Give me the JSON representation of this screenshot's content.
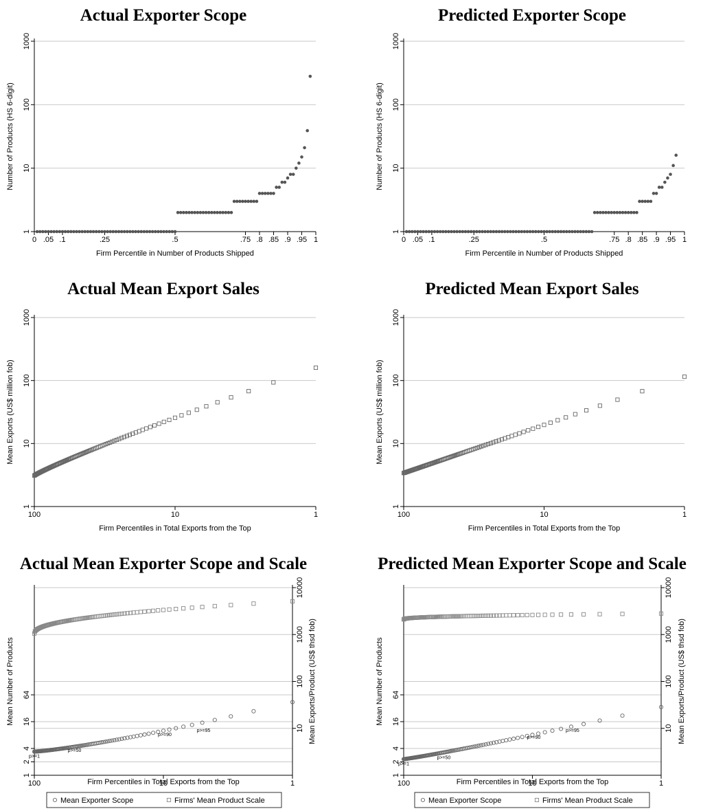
{
  "chart_data": [
    {
      "panel": "a1",
      "type": "scatter",
      "kind": "scope",
      "title": "Actual Exporter Scope",
      "xlabel": "Firm Percentile in Number of Products Shipped",
      "ylabel": "Number of Products (HS 6-digit)",
      "xlim": [
        0,
        1
      ],
      "ylim": [
        1,
        1000
      ],
      "yscale": "log",
      "xticks": [
        {
          "v": 0,
          "label": "0"
        },
        {
          "v": 0.05,
          "label": ".05"
        },
        {
          "v": 0.1,
          "label": ".1"
        },
        {
          "v": 0.25,
          "label": ".25"
        },
        {
          "v": 0.5,
          "label": ".5"
        },
        {
          "v": 0.75,
          "label": ".75"
        },
        {
          "v": 0.8,
          "label": ".8"
        },
        {
          "v": 0.85,
          "label": ".85"
        },
        {
          "v": 0.9,
          "label": ".9"
        },
        {
          "v": 0.95,
          "label": ".95"
        },
        {
          "v": 1,
          "label": "1"
        }
      ],
      "yticks": [
        {
          "v": 1,
          "label": "1"
        },
        {
          "v": 10,
          "label": "10"
        },
        {
          "v": 100,
          "label": "100"
        },
        {
          "v": 1000,
          "label": "1000"
        }
      ],
      "grid": true,
      "steps": [
        {
          "from": 0.01,
          "to": 0.5,
          "y": 1
        },
        {
          "from": 0.51,
          "to": 0.7,
          "y": 2
        },
        {
          "from": 0.71,
          "to": 0.79,
          "y": 3
        },
        {
          "from": 0.8,
          "to": 0.85,
          "y": 4
        },
        {
          "from": 0.86,
          "to": 0.87,
          "y": 5
        },
        {
          "from": 0.88,
          "to": 0.89,
          "y": 6
        }
      ],
      "tail": [
        {
          "x": 0.9,
          "y": 7
        },
        {
          "x": 0.91,
          "y": 8
        },
        {
          "x": 0.92,
          "y": 8
        },
        {
          "x": 0.93,
          "y": 10
        },
        {
          "x": 0.94,
          "y": 12
        },
        {
          "x": 0.95,
          "y": 15
        },
        {
          "x": 0.96,
          "y": 21
        },
        {
          "x": 0.97,
          "y": 39
        },
        {
          "x": 0.98,
          "y": 280
        }
      ]
    },
    {
      "panel": "p1",
      "type": "scatter",
      "kind": "scope",
      "title": "Predicted Exporter Scope",
      "xlabel": "Firm Percentile in Number of Products Shipped",
      "ylabel": "Number of Products (HS 6-digit)",
      "xlim": [
        0,
        1
      ],
      "ylim": [
        1,
        1000
      ],
      "yscale": "log",
      "xticks": [
        {
          "v": 0,
          "label": "0"
        },
        {
          "v": 0.05,
          "label": ".05"
        },
        {
          "v": 0.1,
          "label": ".1"
        },
        {
          "v": 0.25,
          "label": ".25"
        },
        {
          "v": 0.5,
          "label": ".5"
        },
        {
          "v": 0.75,
          "label": ".75"
        },
        {
          "v": 0.8,
          "label": ".8"
        },
        {
          "v": 0.85,
          "label": ".85"
        },
        {
          "v": 0.9,
          "label": ".9"
        },
        {
          "v": 0.95,
          "label": ".95"
        },
        {
          "v": 1,
          "label": "1"
        }
      ],
      "yticks": [
        {
          "v": 1,
          "label": "1"
        },
        {
          "v": 10,
          "label": "10"
        },
        {
          "v": 100,
          "label": "100"
        },
        {
          "v": 1000,
          "label": "1000"
        }
      ],
      "grid": true,
      "steps": [
        {
          "from": 0.01,
          "to": 0.67,
          "y": 1
        },
        {
          "from": 0.68,
          "to": 0.83,
          "y": 2
        },
        {
          "from": 0.84,
          "to": 0.88,
          "y": 3
        },
        {
          "from": 0.89,
          "to": 0.9,
          "y": 4
        },
        {
          "from": 0.91,
          "to": 0.92,
          "y": 5
        }
      ],
      "tail": [
        {
          "x": 0.93,
          "y": 6
        },
        {
          "x": 0.94,
          "y": 7
        },
        {
          "x": 0.95,
          "y": 8
        },
        {
          "x": 0.96,
          "y": 11
        },
        {
          "x": 0.97,
          "y": 16
        }
      ]
    },
    {
      "panel": "a2",
      "type": "scatter",
      "kind": "mean",
      "title": "Actual Mean Export Sales",
      "xlabel": "Firm Percentiles in Total Exports from the Top",
      "ylabel": "Mean Exports (US$ million fob)",
      "xlim": [
        100,
        1
      ],
      "xscale": "log",
      "ylim": [
        1,
        1000
      ],
      "yscale": "log",
      "xticks": [
        {
          "v": 100,
          "label": "100"
        },
        {
          "v": 10,
          "label": "10"
        },
        {
          "v": 1,
          "label": "1"
        }
      ],
      "yticks": [
        {
          "v": 1,
          "label": "1"
        },
        {
          "v": 10,
          "label": "10"
        },
        {
          "v": 100,
          "label": "100"
        },
        {
          "v": 1000,
          "label": "1000"
        }
      ],
      "grid": true,
      "series": [
        {
          "marker": "square",
          "p_from": 100,
          "p_to": 1,
          "y_at_100": 3.1,
          "y_at_1": 160,
          "bend": 0.9
        }
      ]
    },
    {
      "panel": "p2",
      "type": "scatter",
      "kind": "mean",
      "title": "Predicted Mean Export Sales",
      "xlabel": "Firm Percentiles in Total Exports from the Top",
      "ylabel": "Mean Exports (US$ million fob)",
      "xlim": [
        100,
        1
      ],
      "xscale": "log",
      "ylim": [
        1,
        1000
      ],
      "yscale": "log",
      "xticks": [
        {
          "v": 100,
          "label": "100"
        },
        {
          "v": 10,
          "label": "10"
        },
        {
          "v": 1,
          "label": "1"
        }
      ],
      "yticks": [
        {
          "v": 1,
          "label": "1"
        },
        {
          "v": 10,
          "label": "10"
        },
        {
          "v": 100,
          "label": "100"
        },
        {
          "v": 1000,
          "label": "1000"
        }
      ],
      "grid": true,
      "series": [
        {
          "marker": "square",
          "p_from": 100,
          "p_to": 1,
          "y_at_100": 3.4,
          "y_at_1": 115,
          "bend": 1.0
        }
      ]
    },
    {
      "panel": "a3",
      "type": "scatter",
      "kind": "dual",
      "title": "Actual Mean Exporter Scope and Scale",
      "xlabel": "Firm Percentiles in Total Exports from the Top",
      "ylabel": "Mean Number of Products",
      "y2label": "Mean Exports/Product (US$ thsd fob)",
      "xlim": [
        100,
        1
      ],
      "xscale": "log",
      "ylim": [
        1,
        16384
      ],
      "yscale": "log",
      "y2lim": [
        1,
        10000
      ],
      "y2scale": "log",
      "xticks": [
        {
          "v": 100,
          "label": "100"
        },
        {
          "v": 10,
          "label": "10"
        },
        {
          "v": 1,
          "label": "1"
        }
      ],
      "yticks": [
        {
          "v": 1,
          "label": "1"
        },
        {
          "v": 2,
          "label": "2"
        },
        {
          "v": 4,
          "label": "4"
        },
        {
          "v": 16,
          "label": "16"
        },
        {
          "v": 64,
          "label": "64"
        }
      ],
      "y2ticks": [
        {
          "v": 10,
          "label": "10"
        },
        {
          "v": 100,
          "label": "100"
        },
        {
          "v": 1000,
          "label": "1000"
        },
        {
          "v": 10000,
          "label": "10000"
        }
      ],
      "grid": true,
      "series": [
        {
          "name": "Mean Exporter Scope",
          "marker": "circle",
          "axis": "y",
          "p_from": 100,
          "p_to": 1,
          "y_at_100": 3.4,
          "y_at_1": 44,
          "bend": 1.25
        },
        {
          "name": "Firms' Mean Product Scale",
          "marker": "square",
          "axis": "y2",
          "p_from": 100,
          "p_to": 1,
          "y_at_100": 1050,
          "y_at_1": 5100,
          "bend": 0.45
        }
      ],
      "annotations": [
        {
          "text": "p>=1",
          "p": 100,
          "y": 3.4
        },
        {
          "text": "p>=50",
          "p": 50,
          "y": 4.6
        },
        {
          "text": "p>=90",
          "p": 10,
          "y": 10.5
        },
        {
          "text": "p>=95",
          "p": 5,
          "y": 13
        }
      ]
    },
    {
      "panel": "p3",
      "type": "scatter",
      "kind": "dual",
      "title": "Predicted Mean Exporter Scope and Scale",
      "xlabel": "Firm Percentiles in Total Exports from the Top",
      "ylabel": "Mean Number of Products",
      "y2label": "Mean Exports/Product (US$ thsd fob)",
      "xlim": [
        100,
        1
      ],
      "xscale": "log",
      "ylim": [
        1,
        16384
      ],
      "yscale": "log",
      "y2lim": [
        1,
        10000
      ],
      "y2scale": "log",
      "xticks": [
        {
          "v": 100,
          "label": "100"
        },
        {
          "v": 10,
          "label": "10"
        },
        {
          "v": 1,
          "label": "1"
        }
      ],
      "yticks": [
        {
          "v": 1,
          "label": "1"
        },
        {
          "v": 2,
          "label": "2"
        },
        {
          "v": 4,
          "label": "4"
        },
        {
          "v": 16,
          "label": "16"
        },
        {
          "v": 64,
          "label": "64"
        }
      ],
      "y2ticks": [
        {
          "v": 10,
          "label": "10"
        },
        {
          "v": 100,
          "label": "100"
        },
        {
          "v": 1000,
          "label": "1000"
        },
        {
          "v": 10000,
          "label": "10000"
        }
      ],
      "grid": true,
      "series": [
        {
          "name": "Mean Exporter Scope",
          "marker": "circle",
          "axis": "y",
          "p_from": 100,
          "p_to": 1,
          "y_at_100": 2.3,
          "y_at_1": 34,
          "bend": 1.1
        },
        {
          "name": "Firms' Mean Product Scale",
          "marker": "square",
          "axis": "y2",
          "p_from": 100,
          "p_to": 1,
          "y_at_100": 2100,
          "y_at_1": 2800,
          "bend": 0.4
        }
      ],
      "annotations": [
        {
          "text": "p>=1",
          "p": 100,
          "y": 2.3
        },
        {
          "text": "p>=50",
          "p": 50,
          "y": 3.2
        },
        {
          "text": "p>=90",
          "p": 10,
          "y": 9
        },
        {
          "text": "p>=95",
          "p": 5,
          "y": 13
        }
      ]
    }
  ],
  "legend": {
    "position": "bottom",
    "items": [
      "Mean Exporter Scope",
      "Firms' Mean Product Scale"
    ]
  },
  "colors": {
    "scope_dot": "#555555",
    "marker": "#666666",
    "marker_light": "#888888",
    "grid": "#c9c9c9"
  }
}
